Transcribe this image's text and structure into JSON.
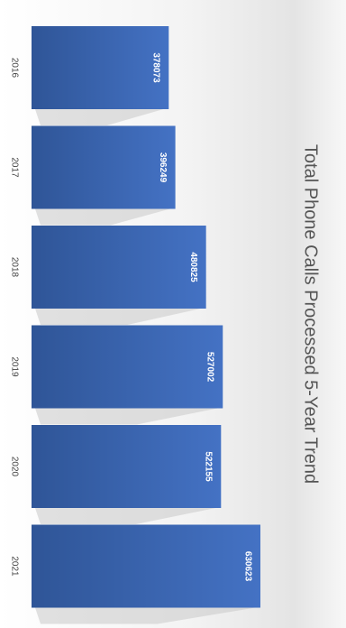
{
  "chart_data": {
    "type": "bar",
    "title": "Total Phone Calls Processed 5-Year Trend",
    "categories": [
      "2016",
      "2017",
      "2018",
      "2019",
      "2020",
      "2021"
    ],
    "values": [
      378073,
      396249,
      480825,
      527002,
      522155,
      630623
    ],
    "value_labels": [
      "378073",
      "396249",
      "480825",
      "527002",
      "522155",
      "630623"
    ],
    "xlabel": "",
    "ylabel": "",
    "ylim": [
      0,
      700000
    ],
    "orientation": "rotated-90-clockwise",
    "grid": false,
    "legend": "none",
    "colors": {
      "bar": "#4472c4",
      "bar_dark": "#2f5597",
      "shadow": "#c8c8c8",
      "title": "#555555",
      "tick": "#444444"
    }
  }
}
